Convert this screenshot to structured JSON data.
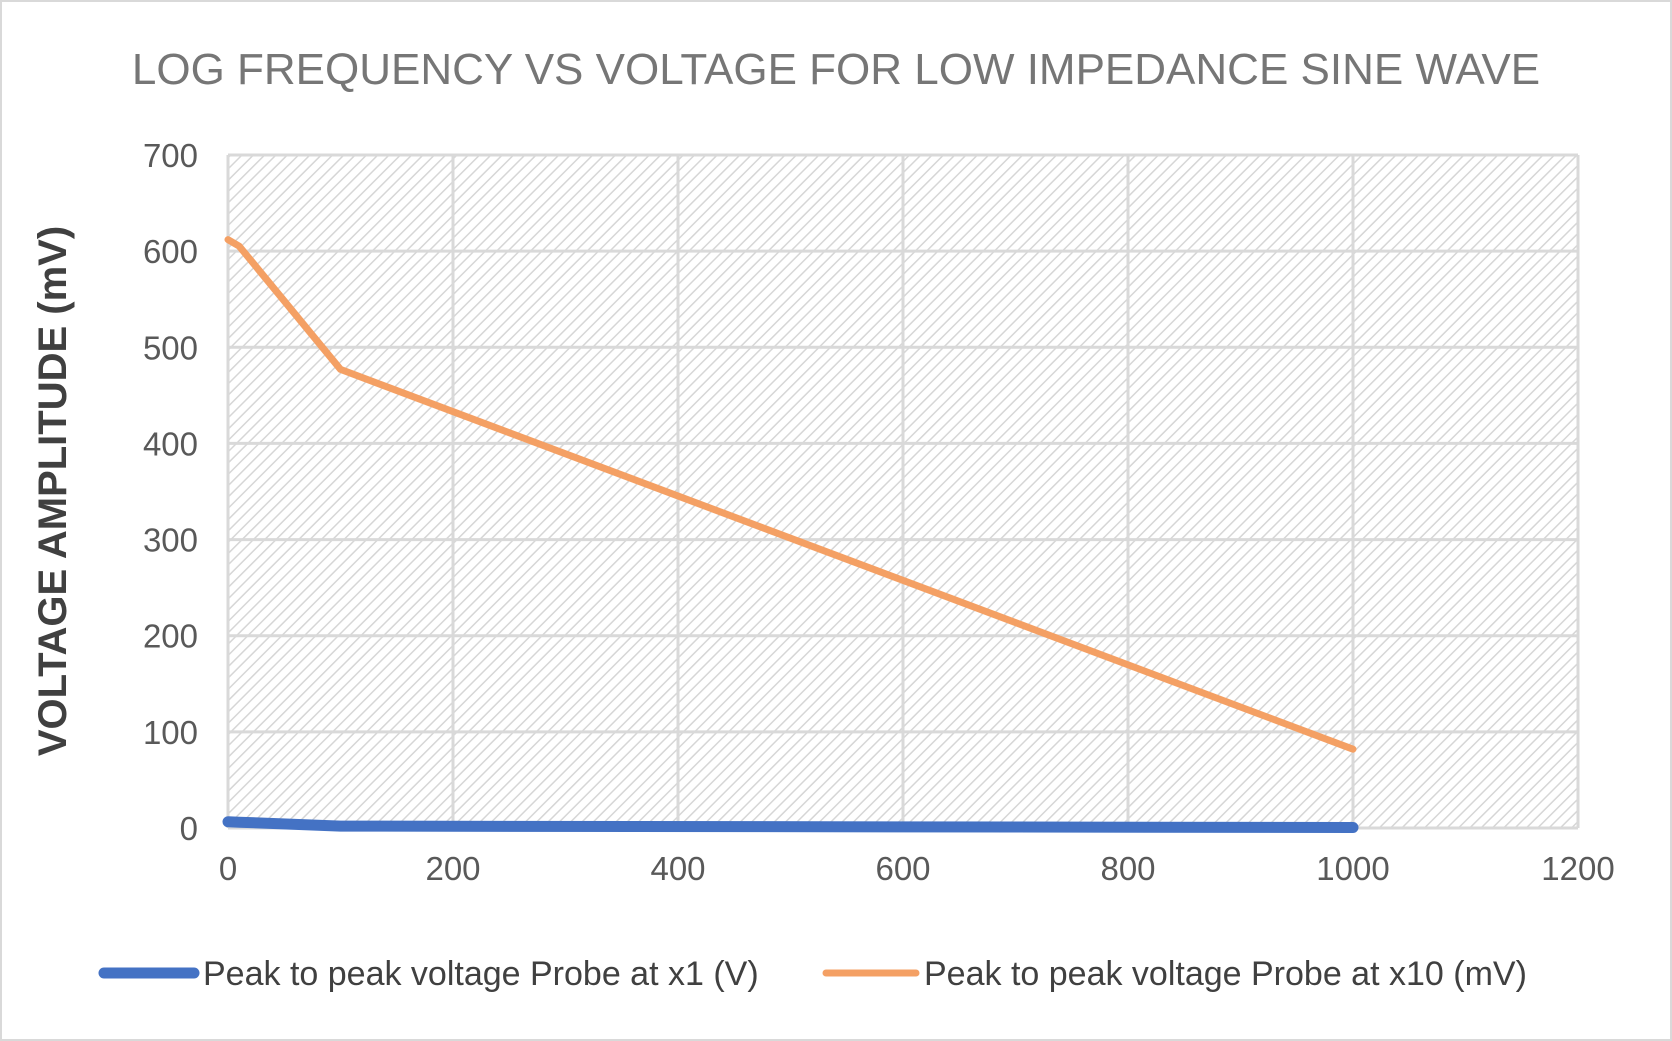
{
  "chart_data": {
    "type": "line",
    "title": "LOG FREQUENCY VS VOLTAGE FOR LOW IMPEDANCE SINE WAVE",
    "xlabel": "",
    "ylabel": "VOLTAGE AMPLITUDE (mV)",
    "xlim": [
      0,
      1200
    ],
    "ylim": [
      0,
      700
    ],
    "x_ticks": [
      "0",
      "200",
      "400",
      "600",
      "800",
      "1000",
      "1200"
    ],
    "y_ticks": [
      "0",
      "100",
      "200",
      "300",
      "400",
      "500",
      "600",
      "700"
    ],
    "grid": true,
    "legend_position": "bottom",
    "series": [
      {
        "name": "Peak to peak voltage Probe at x1 (V)",
        "color": "#4472c4",
        "x": [
          0,
          10,
          100,
          1000
        ],
        "y": [
          6.4,
          6,
          2,
          0.5
        ]
      },
      {
        "name": "Peak to peak voltage Probe at x10 (mV)",
        "color": "#f4a064",
        "x": [
          0,
          10,
          100,
          1000
        ],
        "y": [
          612,
          605,
          477,
          82
        ]
      }
    ]
  }
}
